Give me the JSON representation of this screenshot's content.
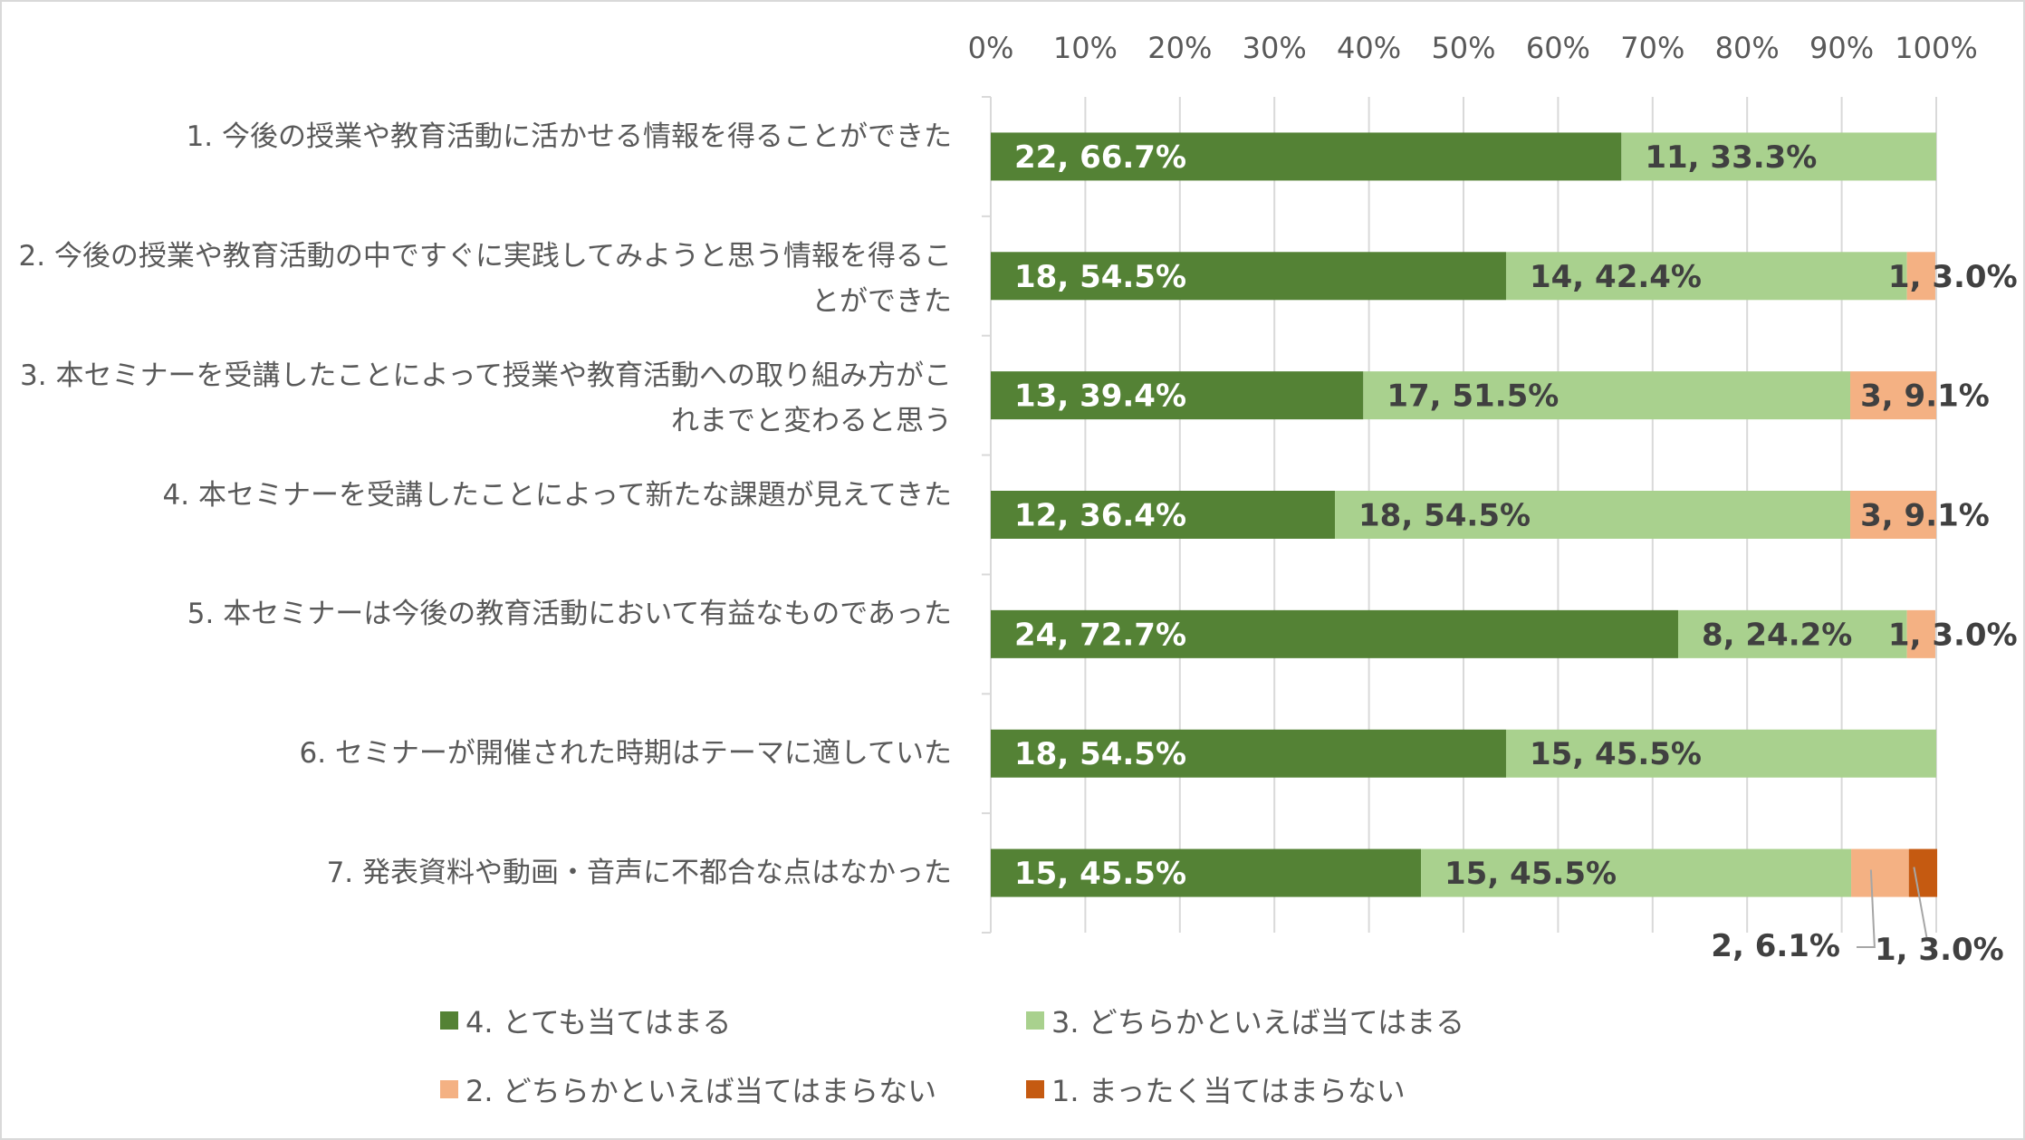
{
  "chart_data": {
    "type": "bar",
    "orientation": "horizontal",
    "stacked": "percent",
    "xlim": [
      0,
      100
    ],
    "grid": true,
    "x_ticks": [
      "0%",
      "10%",
      "20%",
      "30%",
      "40%",
      "50%",
      "60%",
      "70%",
      "80%",
      "90%",
      "100%"
    ],
    "legend_position": "bottom",
    "categories": [
      "1. 今後の授業や教育活動に活かせる情報を得ることができた",
      "2. 今後の授業や教育活動の中ですぐに実践してみようと思う情報を得ることができた",
      "3. 本セミナーを受講したことによって授業や教育活動への取り組み方がこれまでと変わると思う",
      "4. 本セミナーを受講したことによって新たな課題が見えてきた",
      "5. 本セミナーは今後の教育活動において有益なものであった",
      "6. セミナーが開催された時期はテーマに適していた",
      "7. 発表資料や動画・音声に不都合な点はなかった"
    ],
    "series": [
      {
        "name": "4. とても当てはまる",
        "color": "#548235",
        "counts": [
          22,
          18,
          13,
          12,
          24,
          18,
          15
        ],
        "percents": [
          66.7,
          54.5,
          39.4,
          36.4,
          72.7,
          54.5,
          45.5
        ]
      },
      {
        "name": "3. どちらかといえば当てはまる",
        "color": "#a9d18e",
        "counts": [
          11,
          14,
          17,
          18,
          8,
          15,
          15
        ],
        "percents": [
          33.3,
          42.4,
          51.5,
          54.5,
          24.2,
          45.5,
          45.5
        ]
      },
      {
        "name": "2. どちらかといえば当てはまらない",
        "color": "#f4b183",
        "counts": [
          0,
          1,
          3,
          3,
          1,
          0,
          2
        ],
        "percents": [
          0,
          3.0,
          9.1,
          9.1,
          3.0,
          0,
          6.1
        ]
      },
      {
        "name": "1. まったく当てはまらない",
        "color": "#c55a11",
        "counts": [
          0,
          0,
          0,
          0,
          0,
          0,
          1
        ],
        "percents": [
          0,
          0,
          0,
          0,
          0,
          0,
          3.0
        ]
      }
    ]
  }
}
